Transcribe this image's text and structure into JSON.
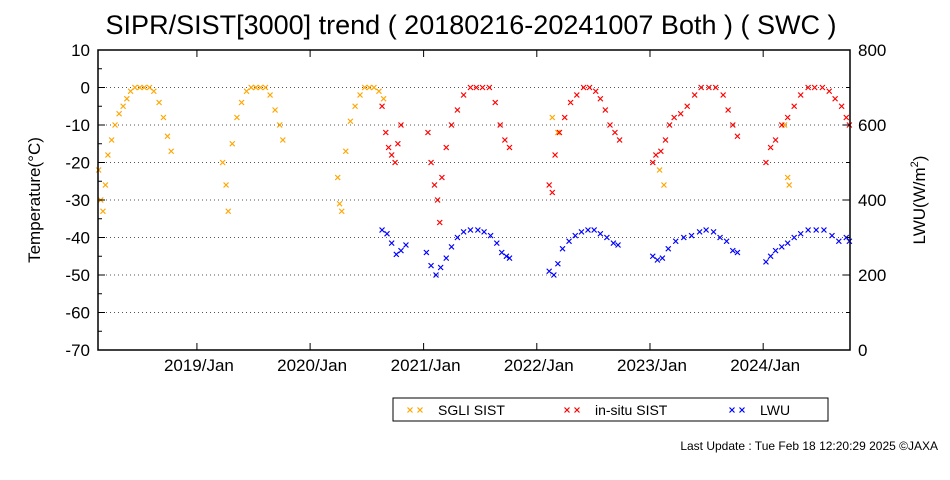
{
  "chart_data": {
    "type": "scatter",
    "title": "SIPR/SIST[3000] trend ( 20180216-20241007 Both ) ( SWC )",
    "ylabel": "Temperature(°C)",
    "y2label_main": "LWU(W/m",
    "y2label_sup": "2",
    "y2label_end": ")",
    "ylim": [
      -70,
      10
    ],
    "y2lim": [
      0,
      800
    ],
    "xlim": [
      "2018-02-16",
      "2024-10-07"
    ],
    "grid": "horizontal dotted",
    "legend_position": "bottom-right",
    "y_ticks": [
      "10",
      "0",
      "-10",
      "-20",
      "-30",
      "-40",
      "-50",
      "-60",
      "-70"
    ],
    "y2_ticks": [
      "800",
      "600",
      "400",
      "200",
      "0"
    ],
    "x_ticks": [
      {
        "date": "2019-01-01",
        "label": "2019/Jan"
      },
      {
        "date": "2020-01-01",
        "label": "2020/Jan"
      },
      {
        "date": "2021-01-01",
        "label": "2021/Jan"
      },
      {
        "date": "2022-01-01",
        "label": "2022/Jan"
      },
      {
        "date": "2023-01-01",
        "label": "2023/Jan"
      },
      {
        "date": "2024-01-01",
        "label": "2024/Jan"
      }
    ],
    "series": [
      {
        "name": "SGLI SIST",
        "axis": "left",
        "color": "#ffa500",
        "marker": "x",
        "points": [
          [
            "2018-02-18",
            -22
          ],
          [
            "2018-02-25",
            -30
          ],
          [
            "2018-03-04",
            -33
          ],
          [
            "2018-03-12",
            -26
          ],
          [
            "2018-03-20",
            -18
          ],
          [
            "2018-04-01",
            -14
          ],
          [
            "2018-04-12",
            -10
          ],
          [
            "2018-04-25",
            -7
          ],
          [
            "2018-05-08",
            -5
          ],
          [
            "2018-05-20",
            -3
          ],
          [
            "2018-06-01",
            -1
          ],
          [
            "2018-06-15",
            0
          ],
          [
            "2018-07-01",
            0
          ],
          [
            "2018-07-15",
            0
          ],
          [
            "2018-08-01",
            0
          ],
          [
            "2018-08-15",
            -1
          ],
          [
            "2018-09-01",
            -4
          ],
          [
            "2018-09-15",
            -8
          ],
          [
            "2018-09-28",
            -13
          ],
          [
            "2018-10-10",
            -17
          ],
          [
            "2019-03-25",
            -20
          ],
          [
            "2019-04-05",
            -26
          ],
          [
            "2019-04-12",
            -33
          ],
          [
            "2019-04-25",
            -15
          ],
          [
            "2019-05-10",
            -8
          ],
          [
            "2019-05-25",
            -4
          ],
          [
            "2019-06-10",
            -1
          ],
          [
            "2019-06-25",
            0
          ],
          [
            "2019-07-10",
            0
          ],
          [
            "2019-07-25",
            0
          ],
          [
            "2019-08-10",
            0
          ],
          [
            "2019-08-25",
            -2
          ],
          [
            "2019-09-10",
            -6
          ],
          [
            "2019-09-25",
            -10
          ],
          [
            "2019-10-05",
            -14
          ],
          [
            "2020-03-30",
            -24
          ],
          [
            "2020-04-05",
            -31
          ],
          [
            "2020-04-12",
            -33
          ],
          [
            "2020-04-25",
            -17
          ],
          [
            "2020-05-10",
            -9
          ],
          [
            "2020-05-25",
            -5
          ],
          [
            "2020-06-10",
            -2
          ],
          [
            "2020-06-25",
            0
          ],
          [
            "2020-07-10",
            0
          ],
          [
            "2020-07-25",
            0
          ],
          [
            "2020-08-10",
            -1
          ],
          [
            "2020-08-25",
            -3
          ],
          [
            "2022-02-20",
            -8
          ],
          [
            "2022-03-10",
            -12
          ],
          [
            "2023-02-01",
            -22
          ],
          [
            "2023-02-15",
            -26
          ],
          [
            "2024-03-10",
            -10
          ],
          [
            "2024-03-20",
            -24
          ],
          [
            "2024-03-25",
            -26
          ]
        ]
      },
      {
        "name": "in-situ SIST",
        "axis": "left",
        "color": "#ff0000",
        "marker": "x",
        "points": [
          [
            "2020-08-20",
            -5
          ],
          [
            "2020-09-01",
            -12
          ],
          [
            "2020-09-10",
            -16
          ],
          [
            "2020-09-20",
            -18
          ],
          [
            "2020-10-01",
            -20
          ],
          [
            "2020-10-10",
            -15
          ],
          [
            "2020-10-20",
            -10
          ],
          [
            "2021-01-15",
            -12
          ],
          [
            "2021-01-25",
            -20
          ],
          [
            "2021-02-05",
            -26
          ],
          [
            "2021-02-15",
            -30
          ],
          [
            "2021-02-22",
            -36
          ],
          [
            "2021-03-01",
            -24
          ],
          [
            "2021-03-15",
            -16
          ],
          [
            "2021-04-01",
            -10
          ],
          [
            "2021-04-20",
            -6
          ],
          [
            "2021-05-10",
            -2
          ],
          [
            "2021-06-01",
            0
          ],
          [
            "2021-06-20",
            0
          ],
          [
            "2021-07-10",
            0
          ],
          [
            "2021-08-01",
            0
          ],
          [
            "2021-08-20",
            -4
          ],
          [
            "2021-09-05",
            -10
          ],
          [
            "2021-09-20",
            -14
          ],
          [
            "2021-10-05",
            -16
          ],
          [
            "2022-02-10",
            -26
          ],
          [
            "2022-02-20",
            -28
          ],
          [
            "2022-03-01",
            -18
          ],
          [
            "2022-03-15",
            -12
          ],
          [
            "2022-04-01",
            -8
          ],
          [
            "2022-04-20",
            -4
          ],
          [
            "2022-05-10",
            -2
          ],
          [
            "2022-06-01",
            0
          ],
          [
            "2022-06-20",
            0
          ],
          [
            "2022-07-10",
            -1
          ],
          [
            "2022-07-25",
            -3
          ],
          [
            "2022-08-10",
            -6
          ],
          [
            "2022-08-25",
            -10
          ],
          [
            "2022-09-10",
            -12
          ],
          [
            "2022-09-25",
            -14
          ],
          [
            "2023-01-10",
            -20
          ],
          [
            "2023-01-20",
            -18
          ],
          [
            "2023-02-05",
            -17
          ],
          [
            "2023-02-20",
            -14
          ],
          [
            "2023-03-05",
            -10
          ],
          [
            "2023-03-20",
            -8
          ],
          [
            "2023-04-10",
            -7
          ],
          [
            "2023-05-01",
            -5
          ],
          [
            "2023-05-25",
            -2
          ],
          [
            "2023-06-15",
            0
          ],
          [
            "2023-07-10",
            0
          ],
          [
            "2023-08-01",
            0
          ],
          [
            "2023-08-25",
            -2
          ],
          [
            "2023-09-10",
            -6
          ],
          [
            "2023-09-25",
            -10
          ],
          [
            "2023-10-10",
            -13
          ],
          [
            "2024-01-10",
            -20
          ],
          [
            "2024-01-25",
            -16
          ],
          [
            "2024-02-10",
            -14
          ],
          [
            "2024-03-01",
            -10
          ],
          [
            "2024-03-20",
            -8
          ],
          [
            "2024-04-10",
            -5
          ],
          [
            "2024-05-01",
            -2
          ],
          [
            "2024-05-25",
            0
          ],
          [
            "2024-06-15",
            0
          ],
          [
            "2024-07-10",
            0
          ],
          [
            "2024-08-01",
            -1
          ],
          [
            "2024-08-20",
            -3
          ],
          [
            "2024-09-10",
            -5
          ],
          [
            "2024-09-25",
            -8
          ],
          [
            "2024-10-05",
            -10
          ]
        ]
      },
      {
        "name": "LWU",
        "axis": "right",
        "color": "#0000ff",
        "marker": "x",
        "points": [
          [
            "2020-08-20",
            320
          ],
          [
            "2020-09-05",
            310
          ],
          [
            "2020-09-20",
            285
          ],
          [
            "2020-10-05",
            255
          ],
          [
            "2020-10-20",
            265
          ],
          [
            "2020-11-05",
            280
          ],
          [
            "2021-01-10",
            260
          ],
          [
            "2021-01-25",
            225
          ],
          [
            "2021-02-10",
            200
          ],
          [
            "2021-02-25",
            220
          ],
          [
            "2021-03-15",
            245
          ],
          [
            "2021-04-01",
            275
          ],
          [
            "2021-04-20",
            300
          ],
          [
            "2021-05-10",
            315
          ],
          [
            "2021-06-01",
            320
          ],
          [
            "2021-06-25",
            320
          ],
          [
            "2021-07-15",
            315
          ],
          [
            "2021-08-05",
            305
          ],
          [
            "2021-08-25",
            285
          ],
          [
            "2021-09-10",
            260
          ],
          [
            "2021-09-25",
            250
          ],
          [
            "2021-10-05",
            245
          ],
          [
            "2022-02-10",
            210
          ],
          [
            "2022-02-25",
            200
          ],
          [
            "2022-03-10",
            230
          ],
          [
            "2022-03-25",
            270
          ],
          [
            "2022-04-15",
            290
          ],
          [
            "2022-05-05",
            305
          ],
          [
            "2022-05-25",
            315
          ],
          [
            "2022-06-15",
            320
          ],
          [
            "2022-07-05",
            320
          ],
          [
            "2022-07-25",
            310
          ],
          [
            "2022-08-15",
            300
          ],
          [
            "2022-09-05",
            285
          ],
          [
            "2022-09-20",
            280
          ],
          [
            "2023-01-10",
            250
          ],
          [
            "2023-01-25",
            240
          ],
          [
            "2023-02-10",
            245
          ],
          [
            "2023-03-01",
            270
          ],
          [
            "2023-03-25",
            290
          ],
          [
            "2023-04-20",
            300
          ],
          [
            "2023-05-15",
            305
          ],
          [
            "2023-06-10",
            315
          ],
          [
            "2023-07-01",
            320
          ],
          [
            "2023-07-25",
            315
          ],
          [
            "2023-08-15",
            300
          ],
          [
            "2023-09-05",
            290
          ],
          [
            "2023-09-25",
            265
          ],
          [
            "2023-10-10",
            260
          ],
          [
            "2024-01-10",
            235
          ],
          [
            "2024-01-25",
            250
          ],
          [
            "2024-02-10",
            265
          ],
          [
            "2024-03-01",
            275
          ],
          [
            "2024-03-20",
            285
          ],
          [
            "2024-04-10",
            300
          ],
          [
            "2024-05-01",
            310
          ],
          [
            "2024-05-25",
            320
          ],
          [
            "2024-06-20",
            320
          ],
          [
            "2024-07-15",
            320
          ],
          [
            "2024-08-10",
            305
          ],
          [
            "2024-09-01",
            290
          ],
          [
            "2024-09-25",
            300
          ],
          [
            "2024-10-05",
            290
          ]
        ]
      }
    ]
  },
  "legend": [
    {
      "label": "SGLI SIST",
      "color": "#ffa500"
    },
    {
      "label": "in-situ SIST",
      "color": "#ff0000"
    },
    {
      "label": "LWU",
      "color": "#0000ff"
    }
  ],
  "footer": {
    "last_update": "Last Update : Tue Feb 18 12:20:29 2025  ©JAXA"
  }
}
